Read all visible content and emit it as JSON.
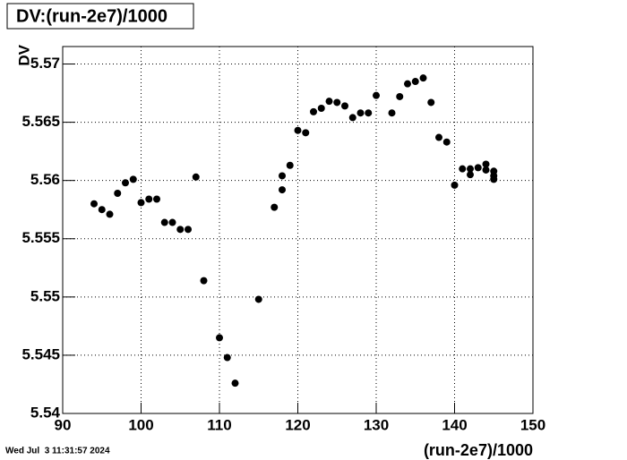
{
  "chart_data": {
    "type": "scatter",
    "title": "DV:(run-2e7)/1000",
    "ylabel": "DV",
    "xlabel": "(run-2e7)/1000",
    "timestamp": "Wed Jul  3 11:31:57 2024",
    "x": [
      94,
      95,
      96,
      97,
      98,
      99,
      100,
      101,
      102,
      103,
      104,
      105,
      106,
      107,
      108,
      110,
      111,
      112,
      115,
      117,
      118,
      118,
      119,
      120,
      121,
      122,
      123,
      124,
      125,
      126,
      127,
      128,
      129,
      130,
      132,
      133,
      134,
      135,
      136,
      137,
      138,
      139,
      140,
      141,
      142,
      142,
      143,
      144,
      144,
      145,
      145,
      145
    ],
    "values": [
      5.558,
      5.5575,
      5.5571,
      5.5589,
      5.5598,
      5.5601,
      5.5581,
      5.5584,
      5.5584,
      5.5564,
      5.5564,
      5.5558,
      5.5558,
      5.5603,
      5.5514,
      5.5465,
      5.5448,
      5.5426,
      5.5498,
      5.5577,
      5.5604,
      5.5592,
      5.5613,
      5.5643,
      5.5641,
      5.5659,
      5.5662,
      5.5668,
      5.5667,
      5.5664,
      5.5654,
      5.5658,
      5.5658,
      5.5673,
      5.5658,
      5.5672,
      5.5683,
      5.5685,
      5.5688,
      5.5667,
      5.5637,
      5.5633,
      5.5596,
      5.561,
      5.561,
      5.5605,
      5.5611,
      5.5614,
      5.5609,
      5.5608,
      5.5604,
      5.5601
    ],
    "color": "#000000",
    "xlim": [
      90,
      150
    ],
    "xticks": [
      90,
      100,
      110,
      120,
      130,
      140,
      150
    ],
    "ylim": [
      5.54,
      5.5715
    ],
    "yticks": [
      5.54,
      5.545,
      5.55,
      5.555,
      5.56,
      5.565,
      5.57
    ],
    "grid": true
  }
}
